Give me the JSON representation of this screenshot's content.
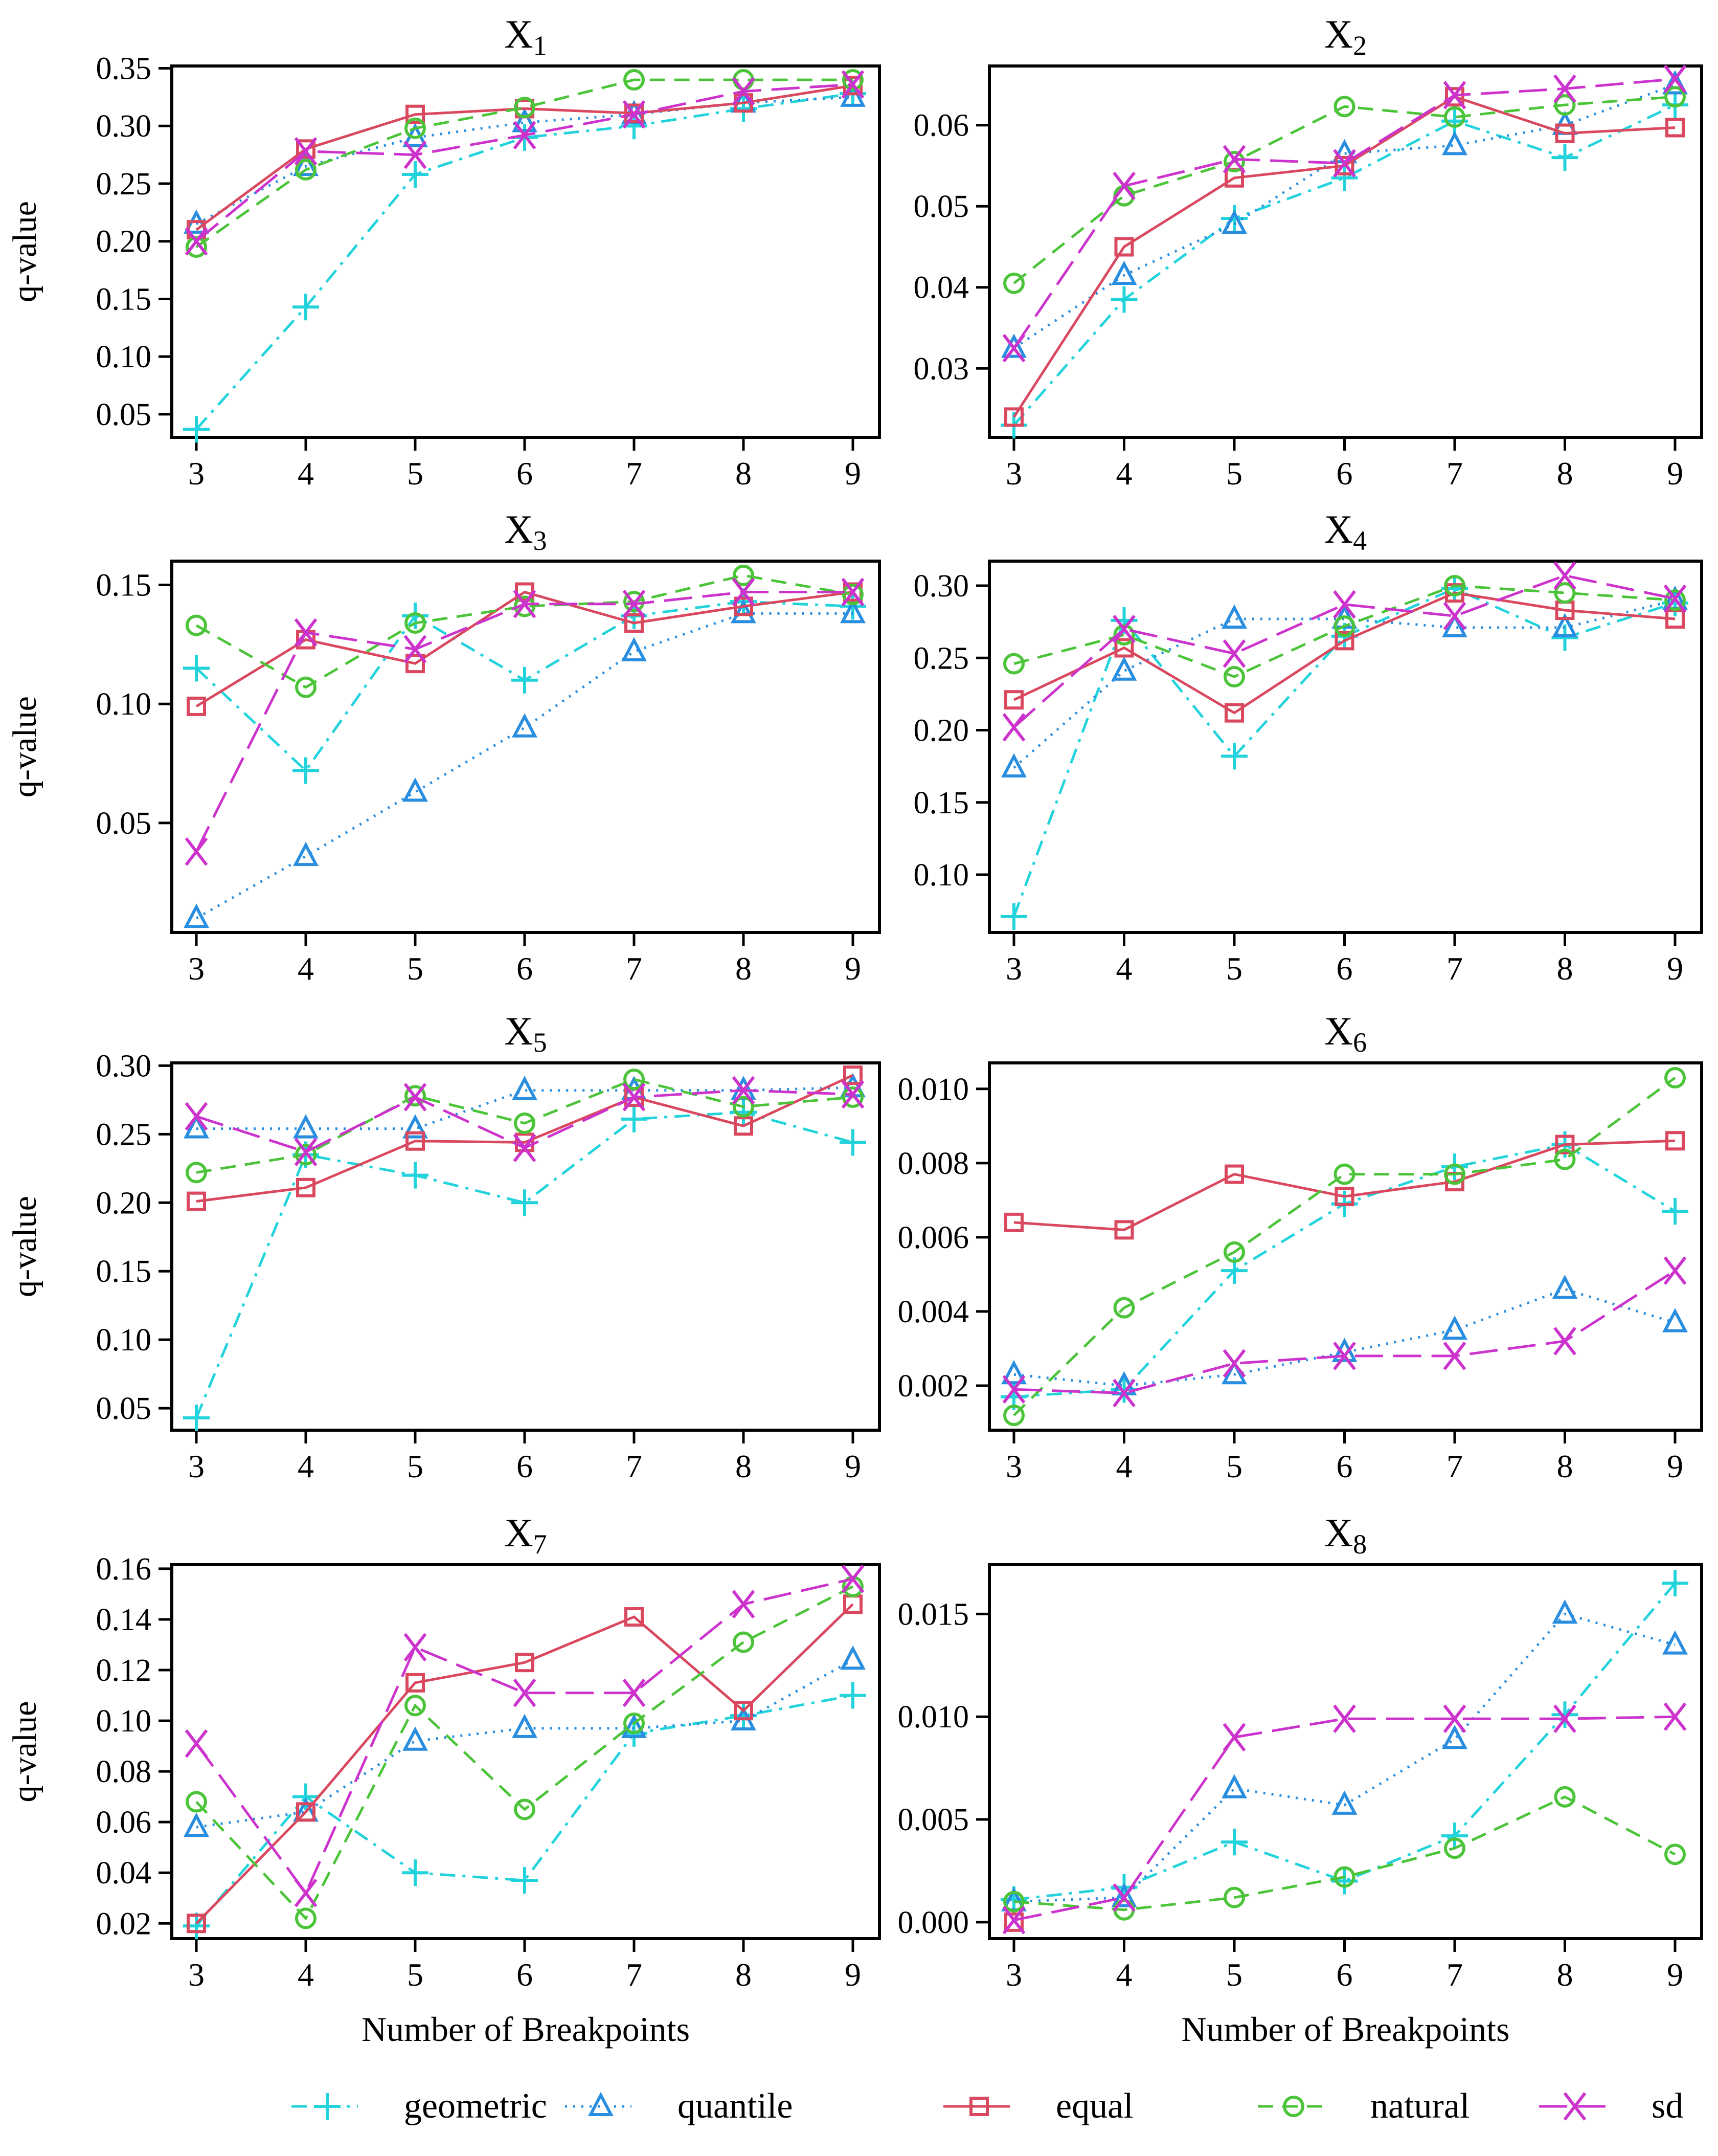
{
  "chart_data": {
    "type": "line",
    "x": [
      3,
      4,
      5,
      6,
      7,
      8,
      9
    ],
    "xlabel": "Number of Breakpoints",
    "ylabel": "q-value",
    "legend": {
      "placement": "bottom",
      "entries": [
        {
          "name": "geometric",
          "color": "#22d3dc",
          "marker": "plus",
          "dash": "dashdot"
        },
        {
          "name": "quantile",
          "color": "#2a8ee0",
          "marker": "triangle",
          "dash": "dotted"
        },
        {
          "name": "equal",
          "color": "#d9485f",
          "marker": "square",
          "dash": "solid"
        },
        {
          "name": "natural",
          "color": "#4cc43a",
          "marker": "circle",
          "dash": "dashed"
        },
        {
          "name": "sd",
          "color": "#cc33cc",
          "marker": "x",
          "dash": "longdash"
        }
      ]
    },
    "panels": [
      {
        "title": "X",
        "sub": "1",
        "ylim": [
          0.03,
          0.352
        ],
        "yticks": [
          0.05,
          0.1,
          0.15,
          0.2,
          0.25,
          0.3,
          0.35
        ],
        "ytick_labels": [
          "0.05",
          "0.10",
          "0.15",
          "0.20",
          "0.25",
          "0.30",
          "0.35"
        ],
        "series": {
          "geometric": [
            0.037,
            0.143,
            0.258,
            0.29,
            0.3,
            0.315,
            0.328
          ],
          "quantile": [
            0.215,
            0.265,
            0.29,
            0.303,
            0.31,
            0.32,
            0.325
          ],
          "equal": [
            0.21,
            0.28,
            0.31,
            0.315,
            0.311,
            0.32,
            0.335
          ],
          "natural": [
            0.195,
            0.262,
            0.298,
            0.316,
            0.34,
            0.34,
            0.34
          ],
          "sd": [
            0.2,
            0.278,
            0.275,
            0.292,
            0.31,
            0.33,
            0.336
          ]
        }
      },
      {
        "title": "X",
        "sub": "2",
        "ylim": [
          0.0215,
          0.0673
        ],
        "yticks": [
          0.03,
          0.04,
          0.05,
          0.06
        ],
        "ytick_labels": [
          "0.03",
          "0.04",
          "0.05",
          "0.06"
        ],
        "series": {
          "geometric": [
            0.023,
            0.0385,
            0.0485,
            0.0535,
            0.0605,
            0.056,
            0.0625
          ],
          "quantile": [
            0.0325,
            0.0415,
            0.0478,
            0.0565,
            0.0575,
            0.06,
            0.065
          ],
          "equal": [
            0.024,
            0.045,
            0.0535,
            0.055,
            0.0635,
            0.059,
            0.0597
          ],
          "natural": [
            0.0405,
            0.0513,
            0.0555,
            0.0623,
            0.061,
            0.0625,
            0.0635
          ],
          "sd": [
            0.0325,
            0.0525,
            0.0558,
            0.0553,
            0.0637,
            0.0645,
            0.0657
          ]
        }
      },
      {
        "title": "X",
        "sub": "3",
        "ylim": [
          0.004,
          0.16
        ],
        "yticks": [
          0.05,
          0.1,
          0.15
        ],
        "ytick_labels": [
          "0.05",
          "0.10",
          "0.15"
        ],
        "series": {
          "geometric": [
            0.115,
            0.072,
            0.137,
            0.11,
            0.137,
            0.143,
            0.141
          ],
          "quantile": [
            0.01,
            0.036,
            0.063,
            0.09,
            0.122,
            0.138,
            0.138
          ],
          "equal": [
            0.099,
            0.127,
            0.117,
            0.147,
            0.134,
            0.141,
            0.147
          ],
          "natural": [
            0.133,
            0.107,
            0.134,
            0.141,
            0.143,
            0.154,
            0.146
          ],
          "sd": [
            0.038,
            0.13,
            0.123,
            0.142,
            0.142,
            0.147,
            0.147
          ]
        }
      },
      {
        "title": "X",
        "sub": "4",
        "ylim": [
          0.06,
          0.317
        ],
        "yticks": [
          0.1,
          0.15,
          0.2,
          0.25,
          0.3
        ],
        "ytick_labels": [
          "0.10",
          "0.15",
          "0.20",
          "0.25",
          "0.30"
        ],
        "series": {
          "geometric": [
            0.071,
            0.276,
            0.182,
            0.265,
            0.298,
            0.264,
            0.288
          ],
          "quantile": [
            0.174,
            0.241,
            0.277,
            0.277,
            0.271,
            0.271,
            0.29
          ],
          "equal": [
            0.221,
            0.257,
            0.212,
            0.262,
            0.295,
            0.283,
            0.277
          ],
          "natural": [
            0.246,
            0.266,
            0.237,
            0.272,
            0.3,
            0.295,
            0.29
          ],
          "sd": [
            0.202,
            0.27,
            0.253,
            0.287,
            0.279,
            0.307,
            0.291
          ]
        }
      },
      {
        "title": "X",
        "sub": "5",
        "ylim": [
          0.034,
          0.302
        ],
        "yticks": [
          0.05,
          0.1,
          0.15,
          0.2,
          0.25,
          0.3
        ],
        "ytick_labels": [
          "0.05",
          "0.10",
          "0.15",
          "0.20",
          "0.25",
          "0.30"
        ],
        "series": {
          "geometric": [
            0.043,
            0.235,
            0.22,
            0.2,
            0.261,
            0.266,
            0.244
          ],
          "quantile": [
            0.254,
            0.254,
            0.254,
            0.282,
            0.282,
            0.282,
            0.284
          ],
          "equal": [
            0.201,
            0.211,
            0.245,
            0.244,
            0.277,
            0.256,
            0.293
          ],
          "natural": [
            0.222,
            0.235,
            0.278,
            0.258,
            0.29,
            0.27,
            0.277
          ],
          "sd": [
            0.263,
            0.237,
            0.277,
            0.24,
            0.277,
            0.282,
            0.279
          ]
        }
      },
      {
        "title": "X",
        "sub": "6",
        "ylim": [
          0.0008,
          0.0107
        ],
        "yticks": [
          0.002,
          0.004,
          0.006,
          0.008,
          0.01
        ],
        "ytick_labels": [
          "0.002",
          "0.004",
          "0.006",
          "0.008",
          "0.010"
        ],
        "series": {
          "geometric": [
            0.0017,
            0.0019,
            0.0051,
            0.0069,
            0.0079,
            0.0085,
            0.0067
          ],
          "quantile": [
            0.0023,
            0.002,
            0.0023,
            0.0029,
            0.0035,
            0.0046,
            0.0037
          ],
          "equal": [
            0.0064,
            0.0062,
            0.0077,
            0.0071,
            0.0075,
            0.0085,
            0.0086
          ],
          "natural": [
            0.0012,
            0.0041,
            0.0056,
            0.0077,
            0.0077,
            0.0081,
            0.0103
          ],
          "sd": [
            0.0019,
            0.0018,
            0.0026,
            0.0028,
            0.0028,
            0.0032,
            0.0051
          ]
        }
      },
      {
        "title": "X",
        "sub": "7",
        "ylim": [
          0.014,
          0.1616
        ],
        "yticks": [
          0.02,
          0.04,
          0.06,
          0.08,
          0.1,
          0.12,
          0.14,
          0.16
        ],
        "ytick_labels": [
          "0.02",
          "0.04",
          "0.06",
          "0.08",
          "0.10",
          "0.12",
          "0.14",
          "0.16"
        ],
        "series": {
          "geometric": [
            0.019,
            0.07,
            0.04,
            0.037,
            0.095,
            0.102,
            0.11
          ],
          "quantile": [
            0.058,
            0.064,
            0.092,
            0.097,
            0.097,
            0.1,
            0.124
          ],
          "equal": [
            0.02,
            0.064,
            0.115,
            0.123,
            0.141,
            0.104,
            0.146
          ],
          "natural": [
            0.068,
            0.022,
            0.106,
            0.065,
            0.099,
            0.131,
            0.153
          ],
          "sd": [
            0.091,
            0.032,
            0.129,
            0.111,
            0.111,
            0.146,
            0.156
          ]
        }
      },
      {
        "title": "X",
        "sub": "8",
        "ylim": [
          -0.0008,
          0.0174
        ],
        "yticks": [
          0.0,
          0.005,
          0.01,
          0.015
        ],
        "ytick_labels": [
          "0.000",
          "0.005",
          "0.010",
          "0.015"
        ],
        "series": {
          "geometric": [
            0.0011,
            0.0017,
            0.0039,
            0.002,
            0.0042,
            0.0101,
            0.0165
          ],
          "quantile": [
            0.001,
            0.0012,
            0.0065,
            0.0057,
            0.0089,
            0.015,
            0.0135
          ],
          "equal": [
            0.0,
            null,
            null,
            null,
            null,
            null,
            null
          ],
          "natural": [
            0.001,
            0.0006,
            0.0012,
            0.0022,
            0.0036,
            0.0061,
            0.0033
          ],
          "sd": [
            0.0001,
            0.0012,
            0.009,
            0.0099,
            0.0099,
            0.0099,
            0.01
          ]
        }
      }
    ]
  }
}
